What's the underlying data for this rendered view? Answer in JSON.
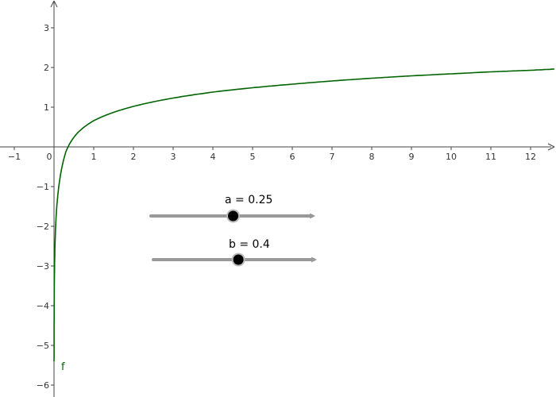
{
  "graph": {
    "x_ticks": [
      "−1",
      "0",
      "1",
      "2",
      "3",
      "4",
      "5",
      "6",
      "7",
      "8",
      "9",
      "10",
      "11",
      "12"
    ],
    "y_ticks": [
      "−6",
      "−5",
      "−4",
      "−3",
      "−2",
      "−1",
      "1",
      "2",
      "3"
    ],
    "function_label": "f",
    "function_color": "#006400"
  },
  "sliders": [
    {
      "name": "a",
      "label": "a = 0.25",
      "value": 0.25,
      "knob_fraction": 0.51
    },
    {
      "name": "b",
      "label": "b = 0.4",
      "value": 0.4,
      "knob_fraction": 0.53
    }
  ],
  "chart_data": {
    "type": "line",
    "title": "",
    "xlabel": "",
    "ylabel": "",
    "xlim": [
      -1.3,
      12.6
    ],
    "ylim": [
      -6.3,
      3.6
    ],
    "grid": false,
    "x_ticks": [
      -1,
      0,
      1,
      2,
      3,
      4,
      5,
      6,
      7,
      8,
      9,
      10,
      11,
      12
    ],
    "y_ticks": [
      -6,
      -5,
      -4,
      -3,
      -2,
      -1,
      1,
      2,
      3
    ],
    "series": [
      {
        "name": "f",
        "color": "#006400",
        "x": [
          0.001,
          0.01,
          0.05,
          0.1,
          0.2,
          0.3,
          0.4,
          0.5,
          0.6,
          0.8,
          1,
          1.5,
          2,
          3,
          4,
          5,
          6,
          7,
          8,
          9,
          10,
          11,
          12,
          12.6
        ],
        "y": [
          -5.4,
          -3.3,
          -1.82,
          -1.18,
          -0.51,
          -0.12,
          0.09,
          0.24,
          0.36,
          0.53,
          0.66,
          0.87,
          1.02,
          1.23,
          1.38,
          1.49,
          1.58,
          1.66,
          1.73,
          1.79,
          1.84,
          1.89,
          1.93,
          1.96
        ]
      }
    ]
  }
}
